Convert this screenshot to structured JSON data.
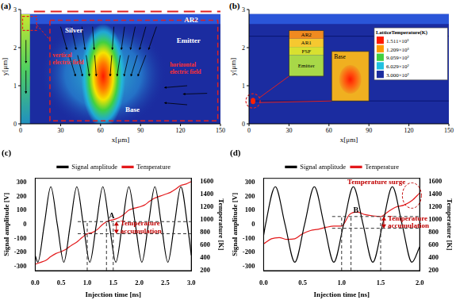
{
  "panels": [
    {
      "type": "device_map_field",
      "title": "(a)",
      "xlabel": "x[μm]",
      "ylabel": "y[μm]",
      "xlim": [
        0,
        150
      ],
      "ylim": [
        0,
        3
      ],
      "xticks": [
        0,
        30,
        60,
        90,
        120,
        150
      ],
      "yticks": [
        0,
        1,
        2,
        3
      ],
      "regions": [
        "Silver",
        "AR2",
        "Emitter",
        "Base"
      ],
      "annotations": [
        "vertical electric field",
        "horizontal electric field"
      ]
    },
    {
      "type": "device_map_temperature",
      "title": "(b)",
      "xlabel": "x[μm]",
      "ylabel": "y[μm]",
      "xlim": [
        0,
        150
      ],
      "ylim": [
        0,
        3
      ],
      "xticks": [
        0,
        30,
        60,
        90,
        120,
        150
      ],
      "yticks": [
        0,
        1,
        2,
        3
      ],
      "regions": [
        "AR2",
        "AR1",
        "FSF",
        "Emitter",
        "Base"
      ],
      "colorbar": {
        "title": "LatticeTemperature(K)",
        "ticks": [
          {
            "value": 1511,
            "label": "1.511×10³"
          },
          {
            "value": 1209,
            "label": "1.209×10³"
          },
          {
            "value": 905.9,
            "label": "9.059×10²"
          },
          {
            "value": 602.9,
            "label": "6.029×10²"
          },
          {
            "value": 300,
            "label": "3.000×10²"
          }
        ]
      }
    }
  ],
  "chart_data": [
    {
      "type": "line",
      "title": "(c)",
      "xlabel": "Injection time [ns]",
      "ylabel": "Signal amplitude [V]",
      "y2label": "Temperature [K]",
      "xlim": [
        0,
        3
      ],
      "xticks": [
        {
          "value": 0,
          "label": "0.0"
        },
        0.5,
        {
          "value": 1,
          "label": "1.0"
        },
        1.5,
        {
          "value": 2,
          "label": "2.0"
        },
        2.5,
        {
          "value": 3,
          "label": "3.0"
        }
      ],
      "ylim": [
        -330,
        330
      ],
      "yticks": [
        -300,
        -200,
        -100,
        0,
        100,
        200,
        300
      ],
      "y2lim": [
        200,
        1650
      ],
      "y2ticks": [
        200,
        400,
        600,
        800,
        1000,
        1200,
        1400,
        1600
      ],
      "grid": false,
      "legend": "top",
      "series": [
        {
          "name": "Signal amplitude",
          "color": "#000000",
          "x": [
            0,
            0.05,
            0.175,
            0.3,
            0.425,
            0.55,
            0.675,
            0.8,
            0.925,
            1.05,
            1.175,
            1.3,
            1.425,
            1.55,
            1.675,
            1.8,
            1.925,
            2.05,
            2.175,
            2.3,
            2.425,
            2.55,
            2.675,
            2.8,
            2.925,
            3.0
          ],
          "values": [
            -220,
            -270,
            0,
            270,
            0,
            -270,
            0,
            270,
            0,
            -270,
            0,
            270,
            0,
            -270,
            0,
            270,
            0,
            -270,
            0,
            270,
            0,
            -270,
            0,
            270,
            0,
            -220
          ]
        },
        {
          "name": "Temperature",
          "color": "#e31a1c",
          "axis": "y2",
          "x": [
            0,
            0.1,
            0.2,
            0.3,
            0.4,
            0.5,
            0.6,
            0.7,
            0.8,
            0.9,
            1.0,
            1.1,
            1.2,
            1.3,
            1.4,
            1.5,
            1.6,
            1.7,
            1.8,
            1.9,
            2.0,
            2.1,
            2.2,
            2.3,
            2.4,
            2.5,
            2.6,
            2.7,
            2.8,
            2.9,
            3.0
          ],
          "values": [
            300,
            330,
            360,
            420,
            470,
            500,
            540,
            600,
            650,
            720,
            780,
            800,
            850,
            930,
            980,
            1000,
            1030,
            1080,
            1150,
            1180,
            1200,
            1230,
            1290,
            1340,
            1370,
            1400,
            1430,
            1480,
            1540,
            1560,
            1600
          ]
        }
      ],
      "reference_lines": {
        "x": [
          1.0,
          1.37,
          1.5
        ],
        "y2": [
          780,
          970
        ]
      },
      "annotations": [
        {
          "text": "A",
          "x": 1.37,
          "y": 970,
          "axis": "y2",
          "color": "#000000"
        },
        {
          "text": "Temperature accumulation",
          "x": 1.5,
          "y": 875,
          "axis": "y2",
          "color": "#c00000"
        }
      ]
    },
    {
      "type": "line",
      "title": "(d)",
      "xlabel": "Injection time [ns]",
      "ylabel": "Signal amplitude [V]",
      "y2label": "Temperature [K]",
      "xlim": [
        0,
        2
      ],
      "xticks": [
        {
          "value": 0,
          "label": "0.0"
        },
        0.5,
        {
          "value": 1,
          "label": "1.0"
        },
        1.5,
        {
          "value": 2,
          "label": "2.0"
        }
      ],
      "ylim": [
        -330,
        330
      ],
      "yticks": [
        -300,
        -200,
        -100,
        0,
        100,
        200,
        300
      ],
      "y2lim": [
        200,
        1650
      ],
      "y2ticks": [
        200,
        400,
        600,
        800,
        1000,
        1200,
        1400,
        1600
      ],
      "grid": false,
      "legend": "top",
      "series": [
        {
          "name": "Signal amplitude",
          "color": "#000000",
          "x": [
            0,
            0.025,
            0.15,
            0.275,
            0.4,
            0.525,
            0.65,
            0.775,
            0.9,
            1.025,
            1.15,
            1.275,
            1.4,
            1.525,
            1.65,
            1.775,
            1.9,
            2.0
          ],
          "values": [
            -80,
            0,
            270,
            0,
            -270,
            0,
            270,
            0,
            -270,
            0,
            270,
            0,
            -270,
            0,
            270,
            0,
            -270,
            -160
          ]
        },
        {
          "name": "Temperature",
          "color": "#e31a1c",
          "axis": "y2",
          "x": [
            0,
            0.1,
            0.2,
            0.3,
            0.4,
            0.5,
            0.6,
            0.7,
            0.8,
            0.9,
            1.0,
            1.1,
            1.2,
            1.3,
            1.4,
            1.5,
            1.6,
            1.7,
            1.8,
            1.9,
            2.0
          ],
          "values": [
            620,
            700,
            720,
            690,
            700,
            780,
            830,
            850,
            880,
            900,
            900,
            1080,
            1120,
            1080,
            1060,
            1050,
            1130,
            1200,
            1230,
            1300,
            1420
          ]
        }
      ],
      "reference_lines": {
        "x": [
          1.0,
          1.12,
          1.5
        ],
        "y2": [
          865,
          1050
        ]
      },
      "annotations": [
        {
          "text": "B",
          "x": 1.12,
          "y": 1050,
          "axis": "y2",
          "color": "#000000"
        },
        {
          "text": "Temperature accumulation",
          "x": 1.5,
          "y": 958,
          "axis": "y2",
          "color": "#c00000"
        },
        {
          "text": "Temperature surge",
          "x": 1.9,
          "y": 1380,
          "axis": "y2",
          "color": "#c00000",
          "marker": "circle"
        }
      ]
    }
  ]
}
